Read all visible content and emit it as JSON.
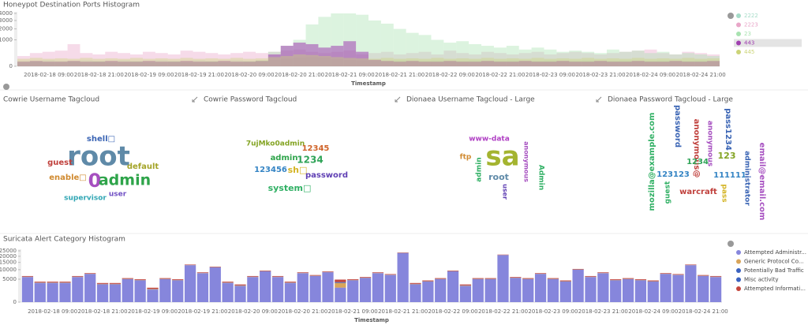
{
  "chart_data": [
    {
      "type": "bar",
      "title": "Honeypot Destination Ports Histogram",
      "x_label": "Timestamp",
      "scale": "sqrt",
      "stacked": false,
      "categories": [
        null,
        null,
        "2018-02-18 09:00",
        null,
        null,
        null,
        "2018-02-18 21:00",
        null,
        null,
        null,
        "2018-02-19 09:00",
        null,
        null,
        null,
        "2018-02-19 21:00",
        null,
        null,
        null,
        "2018-02-20 09:00",
        null,
        null,
        null,
        "2018-02-20 21:00",
        null,
        null,
        null,
        "2018-02-21 09:00",
        null,
        null,
        null,
        "2018-02-21 21:00",
        null,
        null,
        null,
        "2018-02-22 09:00",
        null,
        null,
        null,
        "2018-02-22 21:00",
        null,
        null,
        null,
        "2018-02-23 09:00",
        null,
        null,
        null,
        "2018-02-23 21:00",
        null,
        null,
        null,
        "2018-02-24 09:00",
        null,
        null,
        null,
        "2018-02-24 21:00",
        null
      ],
      "ylim": [
        0,
        4000
      ],
      "yticks": [
        0,
        1000,
        2000,
        3000,
        4000
      ],
      "series": [
        {
          "name": "2222",
          "color": "#a6dcc8",
          "values": [
            40,
            40,
            50,
            40,
            40,
            50,
            40,
            40,
            50,
            40,
            40,
            50,
            40,
            40,
            50,
            40,
            40,
            50,
            40,
            40,
            60,
            80,
            100,
            120,
            100,
            80,
            60,
            50,
            40,
            40,
            50,
            40,
            40,
            50,
            40,
            40,
            50,
            40,
            40,
            50,
            40,
            40,
            50,
            40,
            40,
            50,
            40,
            40,
            50,
            40,
            40,
            50,
            40,
            40,
            50,
            40
          ]
        },
        {
          "name": "2223",
          "color": "#e8a6c8",
          "values": [
            150,
            250,
            300,
            350,
            700,
            250,
            200,
            300,
            250,
            200,
            300,
            250,
            200,
            350,
            300,
            250,
            200,
            250,
            300,
            250,
            300,
            350,
            400,
            300,
            250,
            300,
            350,
            200,
            250,
            300,
            200,
            250,
            300,
            200,
            350,
            250,
            200,
            300,
            250,
            200,
            250,
            300,
            200,
            250,
            300,
            250,
            200,
            250,
            300,
            350,
            400,
            250,
            200,
            300,
            250,
            200
          ]
        },
        {
          "name": "23",
          "color": "#a8e2b0",
          "values": [
            20,
            30,
            20,
            20,
            30,
            20,
            30,
            20,
            20,
            30,
            20,
            20,
            30,
            20,
            20,
            30,
            20,
            20,
            30,
            50,
            300,
            600,
            1000,
            2500,
            3500,
            4000,
            4000,
            3800,
            3000,
            2600,
            2000,
            1600,
            1400,
            1000,
            800,
            900,
            700,
            600,
            500,
            600,
            400,
            500,
            400,
            300,
            350,
            300,
            250,
            400,
            300,
            350,
            250,
            300,
            200,
            250,
            200,
            150
          ]
        },
        {
          "name": "443",
          "color": "#a040b0",
          "values": [
            30,
            40,
            30,
            30,
            40,
            30,
            30,
            40,
            30,
            30,
            40,
            30,
            30,
            40,
            30,
            30,
            40,
            30,
            30,
            40,
            200,
            600,
            800,
            700,
            500,
            600,
            900,
            300,
            60,
            40,
            30,
            40,
            30,
            30,
            40,
            30,
            30,
            40,
            30,
            30,
            40,
            30,
            30,
            40,
            30,
            30,
            40,
            30,
            30,
            40,
            30,
            30,
            40,
            30,
            30,
            40
          ]
        },
        {
          "name": "445",
          "color": "#ccd478",
          "values": [
            80,
            100,
            80,
            90,
            80,
            100,
            80,
            90,
            80,
            100,
            80,
            90,
            80,
            100,
            80,
            90,
            80,
            100,
            80,
            90,
            120,
            150,
            200,
            180,
            150,
            120,
            100,
            90,
            80,
            100,
            80,
            90,
            80,
            100,
            80,
            90,
            80,
            100,
            80,
            90,
            80,
            100,
            80,
            90,
            80,
            100,
            80,
            90,
            80,
            100,
            80,
            90,
            80,
            100,
            80,
            90
          ]
        }
      ]
    },
    {
      "type": "bar",
      "title": "Suricata Alert Category Histogram",
      "x_label": "Timestamp",
      "scale": "sqrt",
      "stacked": true,
      "categories": [
        null,
        null,
        "2018-02-18 09:00",
        null,
        null,
        null,
        "2018-02-18 21:00",
        null,
        null,
        null,
        "2018-02-19 09:00",
        null,
        null,
        null,
        "2018-02-19 21:00",
        null,
        null,
        null,
        "2018-02-20 09:00",
        null,
        null,
        null,
        "2018-02-20 21:00",
        null,
        null,
        null,
        "2018-02-21 09:00",
        null,
        null,
        null,
        "2018-02-21 21:00",
        null,
        null,
        null,
        "2018-02-22 09:00",
        null,
        null,
        null,
        "2018-02-22 21:00",
        null,
        null,
        null,
        "2018-02-23 09:00",
        null,
        null,
        null,
        "2018-02-23 21:00",
        null,
        null,
        null,
        "2018-02-24 09:00",
        null,
        null,
        null,
        "2018-02-24 21:00",
        null
      ],
      "ylim": [
        0,
        25000
      ],
      "yticks": [
        0,
        5000,
        10000,
        15000,
        20000,
        25000
      ],
      "series": [
        {
          "name": "Attempted Administr...",
          "color": "#8686dc",
          "values": [
            6000,
            3500,
            3500,
            3500,
            6000,
            7500,
            3000,
            3000,
            5000,
            4500,
            1500,
            5000,
            4500,
            13000,
            8000,
            11500,
            3500,
            2500,
            6000,
            9000,
            6000,
            3500,
            8000,
            6500,
            8500,
            2000,
            4500,
            5500,
            8000,
            7000,
            23000,
            3000,
            4000,
            5000,
            9000,
            2500,
            5000,
            5000,
            21000,
            5500,
            5000,
            7500,
            5000,
            4000,
            10000,
            6000,
            8000,
            4500,
            5000,
            4500,
            4000,
            7500,
            7000,
            13000,
            6500,
            6000
          ]
        },
        {
          "name": "Generic Protocol Co...",
          "color": "#d9a55a",
          "values": [
            100,
            100,
            100,
            100,
            100,
            100,
            100,
            100,
            100,
            100,
            100,
            100,
            100,
            100,
            100,
            100,
            100,
            100,
            100,
            100,
            100,
            100,
            100,
            100,
            100,
            1500,
            100,
            100,
            100,
            100,
            100,
            100,
            100,
            100,
            100,
            100,
            100,
            100,
            100,
            100,
            100,
            100,
            100,
            100,
            100,
            100,
            100,
            100,
            100,
            100,
            100,
            100,
            100,
            100,
            100,
            100
          ]
        },
        {
          "name": "Potentially Bad Traffic",
          "color": "#3a62c0",
          "values": [
            50,
            50,
            50,
            50,
            50,
            50,
            50,
            50,
            50,
            50,
            50,
            50,
            50,
            50,
            50,
            50,
            50,
            50,
            50,
            50,
            50,
            50,
            50,
            50,
            50,
            300,
            50,
            50,
            50,
            50,
            50,
            50,
            50,
            50,
            50,
            50,
            50,
            50,
            50,
            50,
            50,
            50,
            50,
            50,
            50,
            50,
            50,
            50,
            50,
            50,
            50,
            50,
            50,
            50,
            50,
            50
          ]
        },
        {
          "name": "Misc activity",
          "color": "#3a62c0",
          "values": [
            20,
            20,
            20,
            20,
            20,
            20,
            20,
            20,
            20,
            20,
            20,
            20,
            20,
            20,
            20,
            20,
            20,
            20,
            20,
            20,
            20,
            20,
            20,
            20,
            20,
            20,
            20,
            20,
            20,
            20,
            20,
            20,
            20,
            20,
            20,
            20,
            20,
            20,
            20,
            20,
            20,
            20,
            20,
            20,
            20,
            20,
            20,
            20,
            20,
            20,
            20,
            20,
            20,
            20,
            20,
            20
          ]
        },
        {
          "name": "Attempted Informati...",
          "color": "#c4453c",
          "values": [
            300,
            300,
            300,
            300,
            300,
            300,
            300,
            300,
            300,
            300,
            300,
            300,
            300,
            300,
            300,
            300,
            300,
            300,
            300,
            300,
            300,
            300,
            300,
            300,
            300,
            1000,
            300,
            300,
            300,
            300,
            300,
            300,
            300,
            300,
            300,
            300,
            300,
            300,
            300,
            300,
            300,
            300,
            300,
            300,
            300,
            300,
            300,
            300,
            300,
            300,
            300,
            300,
            300,
            300,
            300,
            300
          ]
        }
      ]
    }
  ],
  "tagclouds": [
    {
      "title": "Cowrie Username Tagcloud",
      "words": [
        {
          "text": "root",
          "color": "#5f8aa8"
        },
        {
          "text": "0",
          "color": "#a64fc0"
        },
        {
          "text": "admin",
          "color": "#2ea44a"
        },
        {
          "text": "shell□",
          "color": "#3a64b4"
        },
        {
          "text": "guest",
          "color": "#c0403c"
        },
        {
          "text": "default",
          "color": "#a4a428"
        },
        {
          "text": "enable□",
          "color": "#d08a30"
        },
        {
          "text": "supervisor",
          "color": "#30a6b4"
        },
        {
          "text": "user",
          "color": "#7050c4"
        }
      ]
    },
    {
      "title": "Cowrie Password Tagcloud",
      "words": [
        {
          "text": "7ujMko0admin",
          "color": "#84a424"
        },
        {
          "text": "12345",
          "color": "#d0642a"
        },
        {
          "text": "admin",
          "color": "#2ea44a"
        },
        {
          "text": "1234",
          "color": "#30a458"
        },
        {
          "text": "123456",
          "color": "#3484c4"
        },
        {
          "text": "sh□",
          "color": "#d4b424"
        },
        {
          "text": "password",
          "color": "#6040b4"
        },
        {
          "text": "system□",
          "color": "#30b064"
        }
      ]
    },
    {
      "title": "Dionaea Username Tagcloud - Large",
      "words": [
        {
          "text": "www-data",
          "color": "#b040c4"
        },
        {
          "text": "sa",
          "color": "#a4b430"
        },
        {
          "text": "ftp",
          "color": "#d08a30"
        },
        {
          "text": "admin",
          "color": "#30b064"
        },
        {
          "text": "root",
          "color": "#5f8aa8"
        },
        {
          "text": "anonymous",
          "color": "#a64fc0"
        },
        {
          "text": "user",
          "color": "#6040b4"
        },
        {
          "text": "Admin",
          "color": "#30b064"
        }
      ]
    },
    {
      "title": "Dionaea Password Tagcloud - Large",
      "words": [
        {
          "text": "mozilla@example.com",
          "color": "#30b064"
        },
        {
          "text": "password",
          "color": "#3a64b4"
        },
        {
          "text": "anonymous@",
          "color": "#c0403c"
        },
        {
          "text": "pass1234",
          "color": "#3a64b4"
        },
        {
          "text": "anonymous",
          "color": "#a64fc0"
        },
        {
          "text": "1234",
          "color": "#30a458"
        },
        {
          "text": "123",
          "color": "#84a424"
        },
        {
          "text": "123123",
          "color": "#3484c4"
        },
        {
          "text": "111111",
          "color": "#3484c4"
        },
        {
          "text": "guest",
          "color": "#30b064"
        },
        {
          "text": "warcraft",
          "color": "#c0403c"
        },
        {
          "text": "pass",
          "color": "#d4b424"
        },
        {
          "text": "email@email.com",
          "color": "#a64fc0"
        },
        {
          "text": "administrator",
          "color": "#3a64b4"
        }
      ]
    }
  ]
}
